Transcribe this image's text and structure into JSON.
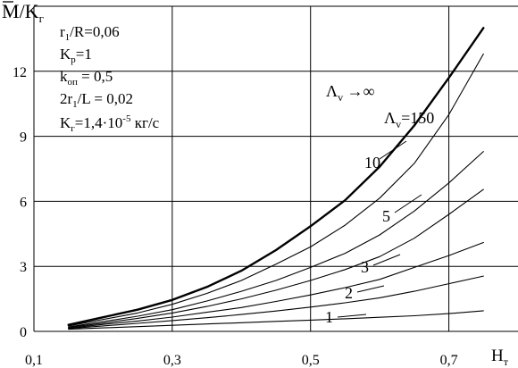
{
  "chart_data": {
    "type": "line",
    "ylabel": {
      "main": "M",
      "sep": "/K",
      "sub": "г"
    },
    "xlabel": {
      "main": "H",
      "sub": "т"
    },
    "xlim": [
      0.1,
      0.8
    ],
    "ylim": [
      0,
      15
    ],
    "x_ticks": [
      {
        "value": 0.1,
        "label": "0,1"
      },
      {
        "value": 0.3,
        "label": "0,3"
      },
      {
        "value": 0.5,
        "label": "0,5"
      },
      {
        "value": 0.7,
        "label": "0,7"
      }
    ],
    "y_ticks": [
      {
        "value": 0,
        "label": "0"
      },
      {
        "value": 3,
        "label": "3"
      },
      {
        "value": 6,
        "label": "6"
      },
      {
        "value": 9,
        "label": "9"
      },
      {
        "value": 12,
        "label": "12"
      }
    ],
    "annotations": [
      {
        "main": "r",
        "sub": "1",
        "rest": "/R=0,06"
      },
      {
        "main": "K",
        "sub": "p",
        "rest": "=1"
      },
      {
        "main": "k",
        "sub": "оп",
        "rest": " = 0,5"
      },
      {
        "main": "2r",
        "sub": "1",
        "rest": "/L = 0,02"
      },
      {
        "main": "K",
        "sub": "г",
        "rest": "=1,4·10",
        "sup": "-5",
        "unit": " кг/с"
      }
    ],
    "series": [
      {
        "name": "Λv → ∞",
        "label": {
          "main": "Λ",
          "sub": "v",
          "rest": " →∞"
        },
        "x": [
          0.15,
          0.2,
          0.25,
          0.3,
          0.35,
          0.4,
          0.45,
          0.5,
          0.55,
          0.6,
          0.65,
          0.7,
          0.75
        ],
        "y": [
          0.3,
          0.65,
          1.0,
          1.45,
          2.05,
          2.8,
          3.75,
          4.85,
          6.05,
          7.6,
          9.5,
          11.7,
          14.0
        ]
      },
      {
        "name": "Λv = 150",
        "label": {
          "main": "Λ",
          "sub": "v",
          "rest": "=150"
        },
        "x": [
          0.15,
          0.2,
          0.25,
          0.3,
          0.35,
          0.4,
          0.45,
          0.5,
          0.55,
          0.6,
          0.65,
          0.7,
          0.75
        ],
        "y": [
          0.25,
          0.55,
          0.85,
          1.25,
          1.75,
          2.35,
          3.1,
          3.9,
          4.9,
          6.15,
          7.75,
          10.0,
          12.8
        ]
      },
      {
        "name": "10",
        "label": {
          "main": "10"
        },
        "x": [
          0.15,
          0.2,
          0.25,
          0.3,
          0.35,
          0.4,
          0.45,
          0.5,
          0.55,
          0.6,
          0.65,
          0.7,
          0.75
        ],
        "y": [
          0.2,
          0.45,
          0.7,
          1.0,
          1.4,
          1.85,
          2.35,
          2.95,
          3.6,
          4.45,
          5.55,
          6.85,
          8.3
        ]
      },
      {
        "name": "5",
        "label": {
          "main": "5"
        },
        "x": [
          0.15,
          0.2,
          0.25,
          0.3,
          0.35,
          0.4,
          0.45,
          0.5,
          0.55,
          0.6,
          0.65,
          0.7,
          0.75
        ],
        "y": [
          0.18,
          0.38,
          0.6,
          0.85,
          1.15,
          1.5,
          1.9,
          2.35,
          2.85,
          3.45,
          4.3,
          5.4,
          6.55
        ]
      },
      {
        "name": "3",
        "label": {
          "main": "3"
        },
        "x": [
          0.15,
          0.2,
          0.25,
          0.3,
          0.35,
          0.4,
          0.45,
          0.5,
          0.55,
          0.6,
          0.65,
          0.7,
          0.75
        ],
        "y": [
          0.15,
          0.32,
          0.48,
          0.66,
          0.88,
          1.1,
          1.38,
          1.68,
          2.02,
          2.4,
          2.95,
          3.5,
          4.1
        ]
      },
      {
        "name": "2",
        "label": {
          "main": "2"
        },
        "x": [
          0.15,
          0.2,
          0.25,
          0.3,
          0.35,
          0.4,
          0.45,
          0.5,
          0.55,
          0.6,
          0.65,
          0.7,
          0.75
        ],
        "y": [
          0.13,
          0.25,
          0.37,
          0.5,
          0.63,
          0.78,
          0.94,
          1.12,
          1.32,
          1.55,
          1.85,
          2.2,
          2.55
        ]
      },
      {
        "name": "1",
        "label": {
          "main": "1"
        },
        "x": [
          0.15,
          0.2,
          0.25,
          0.3,
          0.35,
          0.4,
          0.45,
          0.5,
          0.55,
          0.6,
          0.65,
          0.7,
          0.75
        ],
        "y": [
          0.1,
          0.16,
          0.22,
          0.28,
          0.34,
          0.4,
          0.46,
          0.52,
          0.58,
          0.65,
          0.72,
          0.82,
          0.95
        ]
      }
    ]
  }
}
